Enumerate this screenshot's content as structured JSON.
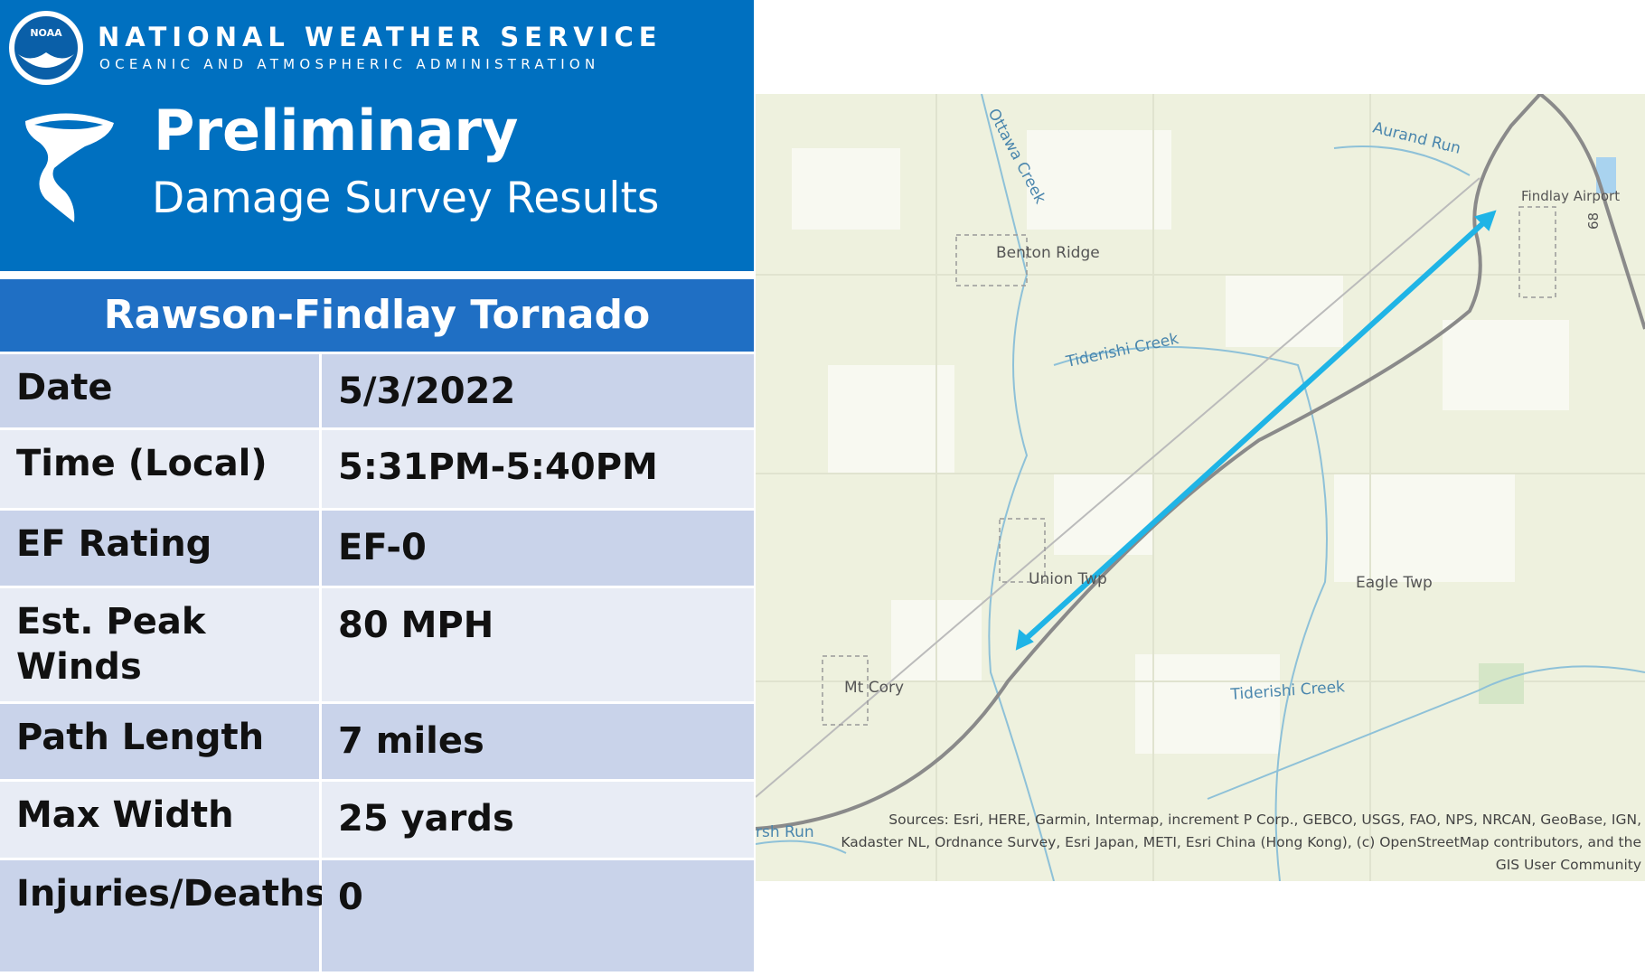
{
  "header": {
    "logo": "NOAA",
    "agency": "NATIONAL WEATHER SERVICE",
    "subagency": "OCEANIC AND ATMOSPHERIC ADMINISTRATION",
    "title": "Preliminary",
    "subtitle": "Damage Survey Results"
  },
  "table": {
    "title": "Rawson-Findlay Tornado",
    "rows": [
      [
        "Date",
        "5/3/2022"
      ],
      [
        "Time (Local)",
        "5:31PM-5:40PM"
      ],
      [
        "EF Rating",
        "EF-0"
      ],
      [
        "Est. Peak Winds",
        "80 MPH"
      ],
      [
        "Path Length",
        "7 miles"
      ],
      [
        "Max Width",
        "25 yards"
      ],
      [
        "Injuries/Deaths",
        "0"
      ]
    ]
  },
  "map": {
    "labels": [
      "Ottawa Creek",
      "Aurand Run",
      "Findlay Airport",
      "Benton Ridge",
      "Tiderishi Creek",
      "Union Twp",
      "Eagle Twp",
      "Mt Cory",
      "Tiderishi Creek",
      "rsh Run",
      "68"
    ],
    "attribution": [
      "Sources: Esri, HERE, Garmin, Intermap, increment P Corp., GEBCO, USGS, FAO, NPS, NRCAN, GeoBase, IGN,",
      "Kadaster NL, Ordnance Survey, Esri Japan, METI, Esri China (Hong Kong), (c) OpenStreetMap contributors, and the",
      "GIS User Community"
    ]
  }
}
